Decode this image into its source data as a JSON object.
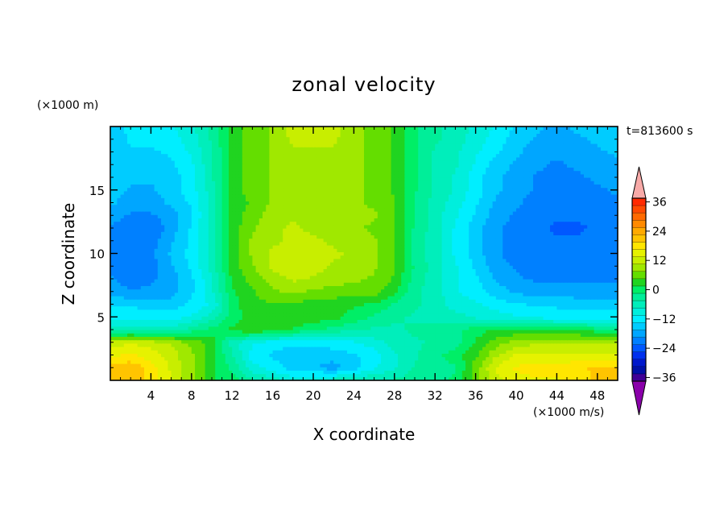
{
  "chart_data": {
    "type": "heatmap",
    "title": "zonal velocity",
    "xlabel": "X coordinate",
    "ylabel": "Z coordinate",
    "x_unit": "(×1000 m/s)",
    "y_unit": "(×1000 m)",
    "time_label": "t=813600 s",
    "xlim": [
      0,
      50
    ],
    "ylim": [
      0,
      20
    ],
    "xticks": [
      4,
      8,
      12,
      16,
      20,
      24,
      28,
      32,
      36,
      40,
      44,
      48
    ],
    "yticks": [
      5,
      10,
      15
    ],
    "colorbar": {
      "tick_values": [
        36,
        24,
        12,
        0,
        -12,
        -24,
        -36
      ],
      "tick_labels": [
        "36",
        "24",
        "12",
        "0",
        "−12",
        "−24",
        "−36"
      ],
      "levels": [
        {
          "value": 39,
          "color": "#f8aaa8"
        },
        {
          "value": 36,
          "color": "#ff2a00"
        },
        {
          "value": 33,
          "color": "#ff4a00"
        },
        {
          "value": 30,
          "color": "#ff6a00"
        },
        {
          "value": 27,
          "color": "#ff8a00"
        },
        {
          "value": 24,
          "color": "#ffaa00"
        },
        {
          "value": 21,
          "color": "#ffc400"
        },
        {
          "value": 18,
          "color": "#ffe600"
        },
        {
          "value": 15,
          "color": "#e6f200"
        },
        {
          "value": 12,
          "color": "#c8ee00"
        },
        {
          "value": 9,
          "color": "#a0e800"
        },
        {
          "value": 6,
          "color": "#64de00"
        },
        {
          "value": 3,
          "color": "#20d420"
        },
        {
          "value": 0,
          "color": "#00ee66"
        },
        {
          "value": -3,
          "color": "#00ee99"
        },
        {
          "value": -6,
          "color": "#00eebb"
        },
        {
          "value": -9,
          "color": "#00eedd"
        },
        {
          "value": -12,
          "color": "#00eeff"
        },
        {
          "value": -15,
          "color": "#00ccff"
        },
        {
          "value": -18,
          "color": "#00a6ff"
        },
        {
          "value": -21,
          "color": "#0080ff"
        },
        {
          "value": -24,
          "color": "#0058ff"
        },
        {
          "value": -27,
          "color": "#0030ee"
        },
        {
          "value": -30,
          "color": "#0018cc"
        },
        {
          "value": -33,
          "color": "#0010a8"
        },
        {
          "value": -36,
          "color": "#400096"
        },
        {
          "value": -39,
          "color": "#8a00aa"
        }
      ]
    },
    "grid_x": [
      0,
      2,
      4,
      6,
      8,
      10,
      12,
      14,
      16,
      18,
      20,
      22,
      24,
      26,
      28,
      30,
      32,
      34,
      36,
      38,
      40,
      42,
      44,
      46,
      48,
      50
    ],
    "grid_z": [
      0,
      1,
      2,
      3,
      4,
      5,
      6,
      7,
      8,
      9,
      10,
      11,
      12,
      13,
      14,
      15,
      16,
      17,
      18,
      19,
      20
    ],
    "field_rows": [
      [
        20,
        22,
        18,
        14,
        8,
        2,
        0,
        -4,
        -6,
        -8,
        -7,
        -6,
        -5,
        -4,
        -4,
        -3,
        -2,
        -1,
        6,
        12,
        15,
        16,
        16,
        18,
        20,
        22
      ],
      [
        21,
        22,
        18,
        13,
        8,
        2,
        -2,
        -9,
        -12,
        -15,
        -16,
        -18,
        -15,
        -11,
        -8,
        -4,
        -3,
        -2,
        6,
        14,
        17,
        18,
        18,
        19,
        20,
        20
      ],
      [
        16,
        17,
        15,
        12,
        8,
        2,
        -4,
        -12,
        -14,
        -15,
        -16,
        -15,
        -14,
        -12,
        -8,
        -5,
        -2,
        0,
        4,
        10,
        14,
        14,
        14,
        14,
        14,
        14
      ],
      [
        12,
        13,
        12,
        10,
        7,
        3,
        -6,
        -10,
        -12,
        -13,
        -12,
        -12,
        -11,
        -9,
        -6,
        -5,
        -4,
        -3,
        2,
        6,
        9,
        10,
        10,
        10,
        10,
        10
      ],
      [
        -6,
        -6,
        -7,
        -6,
        -3,
        0,
        2,
        4,
        3,
        1,
        -1,
        -3,
        -4,
        -5,
        -5,
        -4,
        -3,
        -2,
        0,
        2,
        2,
        2,
        1,
        1,
        0,
        -1
      ],
      [
        -11,
        -11,
        -11,
        -12,
        -10,
        -6,
        0,
        3,
        4,
        4,
        3,
        3,
        0,
        -2,
        -4,
        -5,
        -6,
        -6,
        -8,
        -9,
        -10,
        -11,
        -12,
        -12,
        -12,
        -12
      ],
      [
        -14,
        -14,
        -15,
        -15,
        -13,
        -10,
        0,
        4,
        4,
        4,
        3,
        3,
        2,
        1,
        -2,
        -4,
        -6,
        -9,
        -10,
        -12,
        -13,
        -14,
        -14,
        -15,
        -15,
        -15
      ],
      [
        -18,
        -19,
        -19,
        -18,
        -14,
        -8,
        1,
        4,
        7,
        8,
        7,
        6,
        6,
        6,
        2,
        -4,
        -6,
        -10,
        -12,
        -15,
        -17,
        -18,
        -18,
        -18,
        -18,
        -18
      ],
      [
        -19,
        -21,
        -20,
        -18,
        -14,
        -8,
        2,
        6,
        9,
        11,
        10,
        9,
        8,
        7,
        4,
        -3,
        -6,
        -10,
        -13,
        -17,
        -19,
        -20,
        -20,
        -20,
        -20,
        -20
      ],
      [
        -20,
        -22,
        -21,
        -17,
        -13,
        -6,
        3,
        7,
        11,
        13,
        12,
        10,
        10,
        8,
        5,
        -2,
        -6,
        -10,
        -14,
        -18,
        -20,
        -21,
        -22,
        -22,
        -22,
        -22
      ],
      [
        -21,
        -22,
        -20,
        -16,
        -12,
        -6,
        3,
        8,
        11,
        12,
        12,
        11,
        10,
        8,
        5,
        -3,
        -6,
        -11,
        -15,
        -19,
        -21,
        -22,
        -22,
        -22,
        -22,
        -21
      ],
      [
        -20,
        -22,
        -21,
        -17,
        -13,
        -6,
        3,
        8,
        10,
        11,
        11,
        10,
        9,
        8,
        5,
        -3,
        -6,
        -11,
        -15,
        -19,
        -21,
        -21,
        -22,
        -22,
        -21,
        -21
      ],
      [
        -20,
        -22,
        -22,
        -18,
        -13,
        -6,
        3,
        7,
        10,
        11,
        10,
        9,
        8,
        7,
        5,
        -2,
        -6,
        -11,
        -15,
        -19,
        -21,
        -22,
        -23,
        -23,
        -22,
        -22
      ],
      [
        -18,
        -20,
        -20,
        -18,
        -14,
        -6,
        3,
        6,
        9,
        10,
        9,
        9,
        8,
        8,
        5,
        -2,
        -6,
        -10,
        -14,
        -18,
        -20,
        -21,
        -22,
        -22,
        -22,
        -21
      ],
      [
        -16,
        -18,
        -18,
        -16,
        -13,
        -6,
        3,
        5,
        8,
        9,
        9,
        9,
        8,
        7,
        5,
        -2,
        -6,
        -9,
        -13,
        -17,
        -19,
        -21,
        -22,
        -22,
        -21,
        -20
      ],
      [
        -15,
        -17,
        -17,
        -15,
        -12,
        -6,
        3,
        6,
        8,
        9,
        9,
        9,
        8,
        7,
        4,
        -1,
        -5,
        -8,
        -12,
        -16,
        -18,
        -20,
        -21,
        -21,
        -20,
        -19
      ],
      [
        -14,
        -16,
        -16,
        -15,
        -12,
        -5,
        3,
        6,
        8,
        9,
        10,
        9,
        8,
        7,
        4,
        -1,
        -5,
        -8,
        -12,
        -16,
        -18,
        -20,
        -20,
        -20,
        -19,
        -18
      ],
      [
        -14,
        -15,
        -15,
        -14,
        -11,
        -5,
        3,
        6,
        8,
        9,
        10,
        9,
        8,
        7,
        4,
        -1,
        -5,
        -7,
        -11,
        -15,
        -17,
        -19,
        -20,
        -19,
        -18,
        -17
      ],
      [
        -15,
        -14,
        -14,
        -13,
        -10,
        -5,
        3,
        6,
        8,
        10,
        10,
        10,
        8,
        7,
        4,
        -1,
        -5,
        -7,
        -10,
        -13,
        -16,
        -18,
        -19,
        -18,
        -17,
        -16
      ],
      [
        -16,
        -13,
        -13,
        -12,
        -9,
        -4,
        3,
        6,
        8,
        11,
        11,
        11,
        8,
        7,
        4,
        -1,
        -4,
        -6,
        -9,
        -12,
        -15,
        -17,
        -18,
        -17,
        -16,
        -15
      ],
      [
        -17,
        -12,
        -12,
        -11,
        -8,
        -4,
        3,
        6,
        8,
        12,
        12,
        12,
        8,
        7,
        4,
        -1,
        -4,
        -6,
        -8,
        -11,
        -14,
        -16,
        -17,
        -16,
        -15,
        -14
      ]
    ]
  }
}
